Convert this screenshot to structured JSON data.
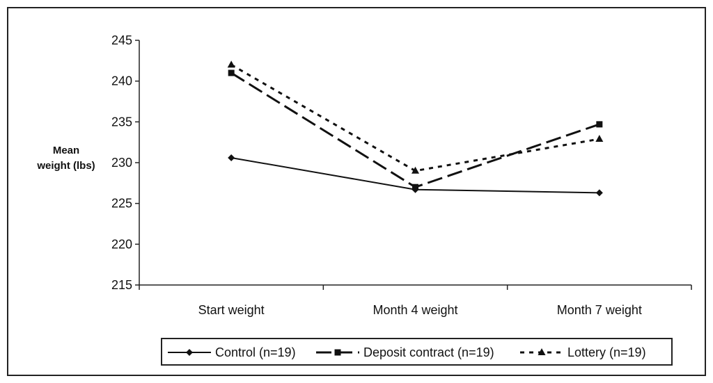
{
  "chart_data": {
    "type": "line",
    "title": "",
    "xlabel": "",
    "ylabel_lines": [
      "Mean",
      "weight (lbs)"
    ],
    "categories": [
      "Start weight",
      "Month 4 weight",
      "Month 7 weight"
    ],
    "ylim": [
      215,
      245
    ],
    "yticks": [
      215,
      220,
      225,
      230,
      235,
      240,
      245
    ],
    "grid": false,
    "legend_position": "bottom",
    "series": [
      {
        "name": "Control (n=19)",
        "values": [
          230.6,
          226.7,
          226.3
        ],
        "marker": "diamond",
        "dash": "solid",
        "color": "#111111"
      },
      {
        "name": "Deposit contract (n=19)",
        "values": [
          241.0,
          227.0,
          234.7
        ],
        "marker": "square",
        "dash": "long-dash",
        "color": "#111111"
      },
      {
        "name": "Lottery (n=19)",
        "values": [
          242.0,
          229.0,
          232.9
        ],
        "marker": "triangle",
        "dash": "dotted",
        "color": "#111111"
      }
    ]
  }
}
